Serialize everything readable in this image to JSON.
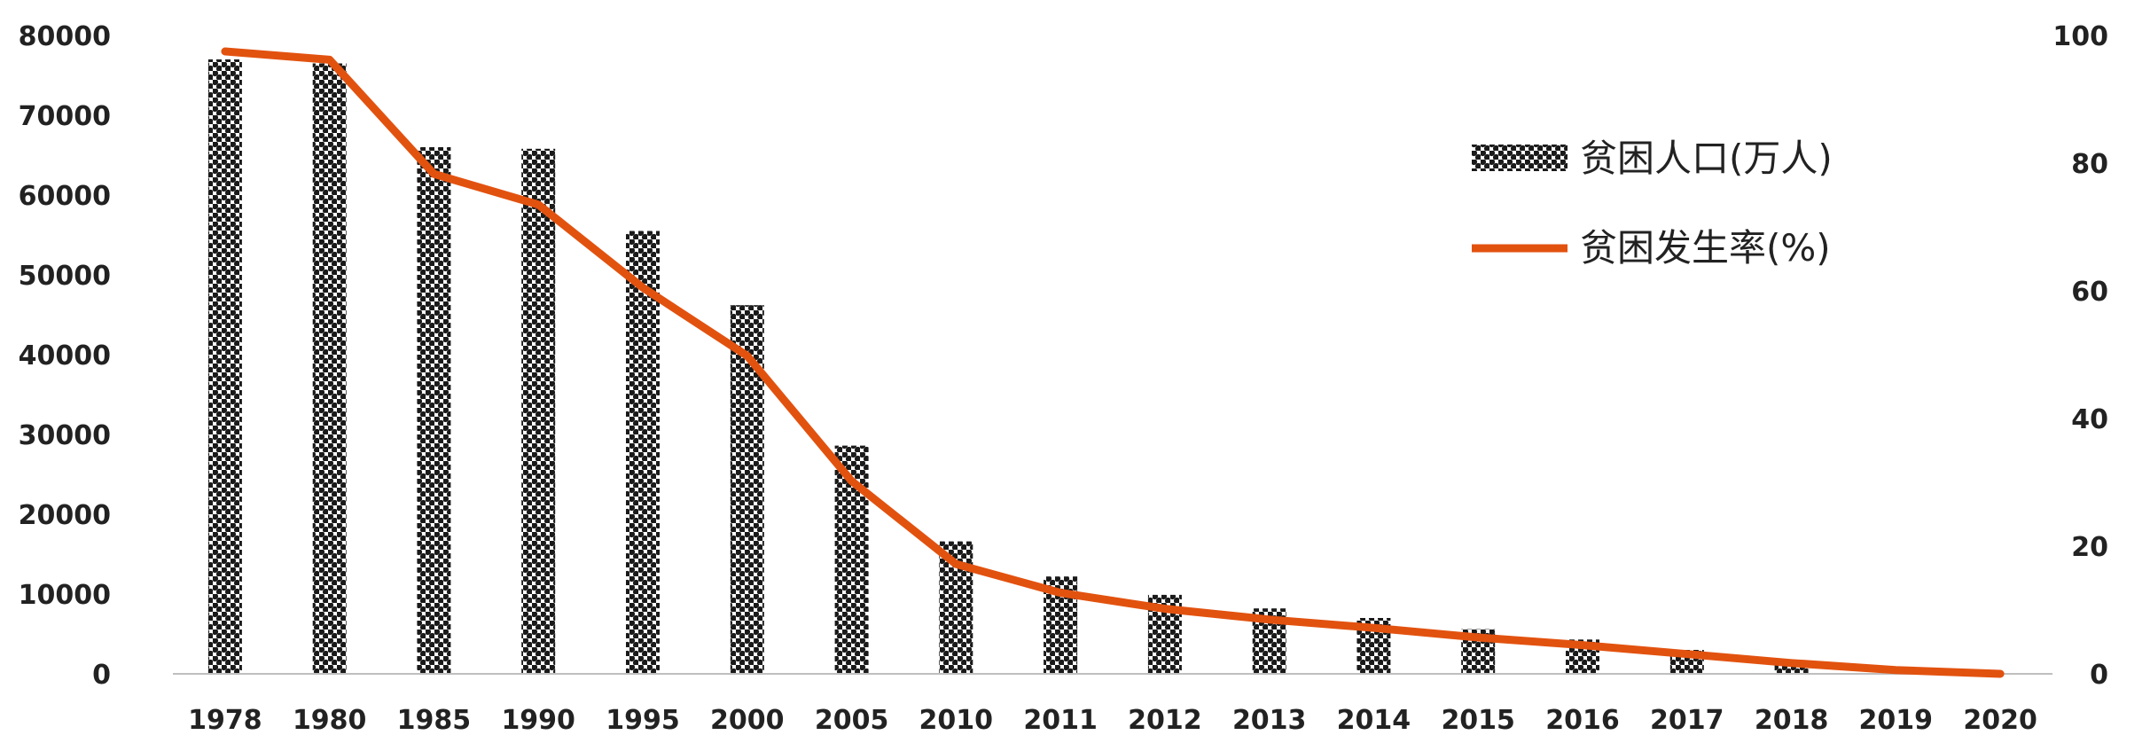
{
  "colors": {
    "line": "#E2520F",
    "bar": "#1a1a1a",
    "axis": "#bfbfbf"
  },
  "chart_data": {
    "type": "bar",
    "categories": [
      "1978",
      "1980",
      "1985",
      "1990",
      "1995",
      "2000",
      "2005",
      "2010",
      "2011",
      "2012",
      "2013",
      "2014",
      "2015",
      "2016",
      "2017",
      "2018",
      "2019",
      "2020"
    ],
    "series": [
      {
        "name": "贫困人口(万人)",
        "type": "bar",
        "axis": "left",
        "values": [
          77000,
          76500,
          66000,
          65800,
          55500,
          46200,
          28600,
          16600,
          12200,
          9900,
          8200,
          7000,
          5600,
          4300,
          3000,
          1700,
          550,
          0
        ]
      },
      {
        "name": "贫困发生率(%)",
        "type": "line",
        "axis": "right",
        "values": [
          97.5,
          96.2,
          78.3,
          73.5,
          60.5,
          49.8,
          30.2,
          17.2,
          12.7,
          10.2,
          8.5,
          7.2,
          5.7,
          4.5,
          3.1,
          1.7,
          0.6,
          0
        ]
      }
    ],
    "ylim": [
      0,
      80000
    ],
    "y_ticks": [
      "0",
      "10000",
      "20000",
      "30000",
      "40000",
      "50000",
      "60000",
      "70000",
      "80000"
    ],
    "y2lim": [
      0,
      100
    ],
    "y2_ticks": [
      "0",
      "20",
      "40",
      "60",
      "80",
      "100"
    ],
    "grid": false,
    "legend_position": "top-right"
  }
}
